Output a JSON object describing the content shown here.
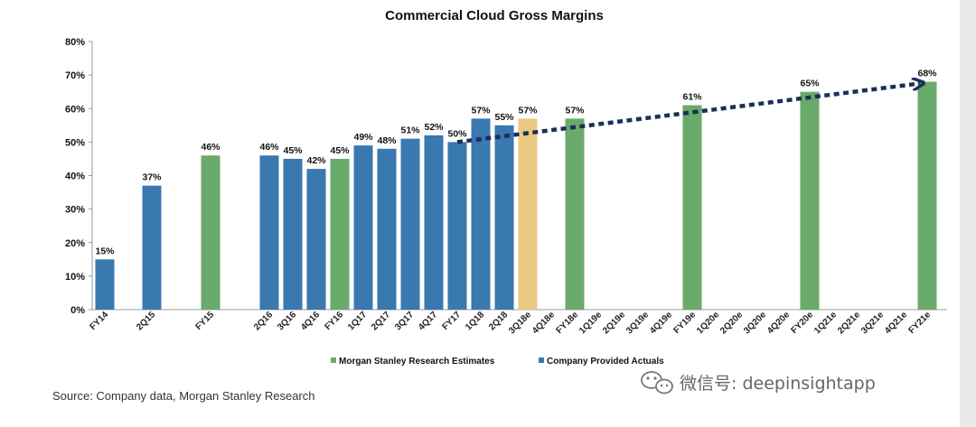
{
  "chart_data": {
    "type": "bar",
    "title": "Commercial Cloud Gross Margins",
    "categories": [
      "FY14",
      "2Q15",
      "FY15",
      "2Q16",
      "3Q16",
      "4Q16",
      "FY16",
      "1Q17",
      "2Q17",
      "3Q17",
      "4Q17",
      "FY17",
      "1Q18",
      "2Q18",
      "3Q18e",
      "4Q18e",
      "FY18e",
      "1Q19e",
      "2Q19e",
      "3Q19e",
      "4Q19e",
      "FY19e",
      "1Q20e",
      "2Q20e",
      "3Q20e",
      "4Q20e",
      "FY20e",
      "1Q21e",
      "2Q21e",
      "3Q21e",
      "4Q21e",
      "FY21e"
    ],
    "x_positions": [
      0,
      2,
      4.5,
      7,
      8,
      9,
      10,
      11,
      12,
      13,
      14,
      15,
      16,
      17,
      18,
      19,
      20,
      21,
      22,
      23,
      24,
      25,
      26,
      27,
      28,
      29,
      30,
      31,
      32,
      33,
      34,
      35
    ],
    "ylim": [
      0,
      80
    ],
    "yticks": [
      0,
      10,
      20,
      30,
      40,
      50,
      60,
      70,
      80
    ],
    "ytick_labels": [
      "0%",
      "10%",
      "20%",
      "30%",
      "40%",
      "50%",
      "60%",
      "70%",
      "80%"
    ],
    "bars": [
      {
        "category": "FY14",
        "value": 15,
        "label": "15%",
        "group": "actual"
      },
      {
        "category": "2Q15",
        "value": 37,
        "label": "37%",
        "group": "actual"
      },
      {
        "category": "FY15",
        "value": 46,
        "label": "46%",
        "group": "estimate"
      },
      {
        "category": "2Q16",
        "value": 46,
        "label": "46%",
        "group": "actual"
      },
      {
        "category": "3Q16",
        "value": 45,
        "label": "45%",
        "group": "actual"
      },
      {
        "category": "4Q16",
        "value": 42,
        "label": "42%",
        "group": "actual"
      },
      {
        "category": "FY16",
        "value": 45,
        "label": "45%",
        "group": "estimate"
      },
      {
        "category": "1Q17",
        "value": 49,
        "label": "49%",
        "group": "actual"
      },
      {
        "category": "2Q17",
        "value": 48,
        "label": "48%",
        "group": "actual"
      },
      {
        "category": "3Q17",
        "value": 51,
        "label": "51%",
        "group": "actual"
      },
      {
        "category": "4Q17",
        "value": 52,
        "label": "52%",
        "group": "actual"
      },
      {
        "category": "FY17",
        "value": 50,
        "label": "50%",
        "group": "actual"
      },
      {
        "category": "1Q18",
        "value": 57,
        "label": "57%",
        "group": "actual"
      },
      {
        "category": "2Q18",
        "value": 55,
        "label": "55%",
        "group": "actual"
      },
      {
        "category": "3Q18e",
        "value": 57,
        "label": "57%",
        "group": "highlight"
      },
      {
        "category": "FY18e",
        "value": 57,
        "label": "57%",
        "group": "estimate"
      },
      {
        "category": "FY19e",
        "value": 61,
        "label": "61%",
        "group": "estimate"
      },
      {
        "category": "FY20e",
        "value": 65,
        "label": "65%",
        "group": "estimate"
      },
      {
        "category": "FY21e",
        "value": 68,
        "label": "68%",
        "group": "estimate"
      }
    ],
    "trend_arrow": {
      "from_category": "FY17",
      "from_value": 50,
      "to_category": "FY21e",
      "to_value": 67.5
    },
    "legend": [
      {
        "name": "Morgan Stanley Research Estimates",
        "color": "#6aaa6a"
      },
      {
        "name": "Company Provided Actuals",
        "color": "#3a78b0"
      }
    ],
    "legend_placement": "bottom-center",
    "grid": false
  },
  "colors": {
    "actual": "#3a78b0",
    "estimate": "#6aaa6a",
    "highlight": "#ecc982",
    "arrow": "#1b2f5a"
  },
  "source": "Source: Company data, Morgan Stanley Research",
  "watermark": "微信号: deepinsightapp"
}
